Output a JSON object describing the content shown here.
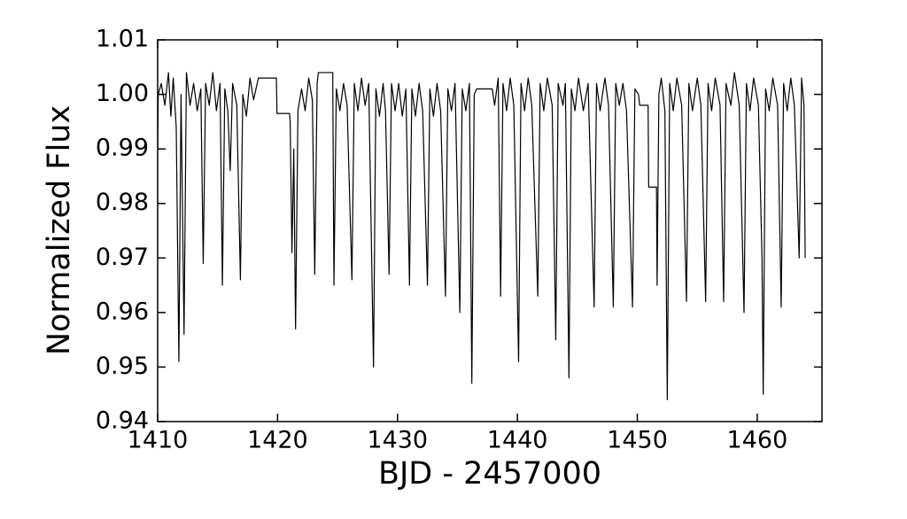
{
  "chart_data": {
    "type": "line",
    "xlabel": "BJD - 2457000",
    "ylabel": "Normalized Flux",
    "color": "#000000",
    "xlim": [
      1410,
      1465.4
    ],
    "ylim": [
      0.94,
      1.01
    ],
    "xticks": [
      1410,
      1420,
      1430,
      1440,
      1450,
      1460
    ],
    "yticks": [
      0.94,
      0.95,
      0.96,
      0.97,
      0.98,
      0.99,
      {
        "value": 1,
        "label": "1.00"
      },
      1.01
    ],
    "x": [
      1410.0,
      1410.05,
      1410.3,
      1410.6,
      1410.9,
      1411.1,
      1411.3,
      1411.55,
      1411.77,
      1411.95,
      1412.2,
      1412.4,
      1412.7,
      1413.0,
      1413.3,
      1413.6,
      1413.8,
      1414.0,
      1414.3,
      1414.6,
      1414.9,
      1415.2,
      1415.4,
      1415.6,
      1415.85,
      1416.05,
      1416.25,
      1416.6,
      1416.9,
      1417.1,
      1417.4,
      1417.7,
      1418.0,
      1418.4,
      1419.9,
      1419.95,
      1421.0,
      1421.05,
      1421.2,
      1421.35,
      1421.5,
      1421.7,
      1422.0,
      1422.3,
      1422.6,
      1422.9,
      1423.1,
      1423.3,
      1423.4,
      1424.6,
      1424.7,
      1424.9,
      1425.2,
      1425.5,
      1425.8,
      1426.2,
      1426.4,
      1426.7,
      1427.0,
      1427.3,
      1427.6,
      1428.0,
      1428.2,
      1428.5,
      1428.8,
      1429.0,
      1429.3,
      1429.5,
      1429.8,
      1430.1,
      1430.4,
      1430.7,
      1431.0,
      1431.2,
      1431.5,
      1431.8,
      1432.1,
      1432.5,
      1432.7,
      1433.0,
      1433.3,
      1433.6,
      1434.0,
      1434.2,
      1434.5,
      1434.8,
      1435.2,
      1435.4,
      1435.7,
      1436.0,
      1436.2,
      1436.4,
      1436.6,
      1437.9,
      1438.1,
      1438.4,
      1438.6,
      1438.8,
      1439.1,
      1439.4,
      1439.7,
      1440.1,
      1440.3,
      1440.6,
      1440.9,
      1441.2,
      1441.7,
      1441.9,
      1442.2,
      1442.5,
      1442.9,
      1443.2,
      1443.4,
      1443.8,
      1444.0,
      1444.3,
      1444.5,
      1444.8,
      1445.1,
      1445.5,
      1445.9,
      1446.4,
      1446.6,
      1446.9,
      1447.3,
      1447.6,
      1448.0,
      1448.2,
      1448.5,
      1448.8,
      1449.1,
      1449.6,
      1449.8,
      1450.1,
      1450.2,
      1450.9,
      1450.95,
      1451.6,
      1451.65,
      1451.8,
      1452.0,
      1452.3,
      1452.5,
      1452.7,
      1453.0,
      1453.3,
      1453.7,
      1454.1,
      1454.3,
      1454.6,
      1455.0,
      1455.3,
      1455.7,
      1455.9,
      1456.2,
      1456.5,
      1456.9,
      1457.2,
      1457.4,
      1457.8,
      1458.1,
      1458.5,
      1458.9,
      1459.1,
      1459.4,
      1459.7,
      1460.1,
      1460.4,
      1460.5,
      1460.7,
      1461.0,
      1461.3,
      1461.7,
      1462.0,
      1462.2,
      1462.5,
      1462.8,
      1463.1,
      1463.5,
      1463.7,
      1463.9,
      1464.0
    ],
    "values": [
      0.99,
      1.0,
      1.002,
      0.998,
      1.004,
      0.996,
      1.003,
      0.994,
      0.951,
      1.0,
      0.956,
      1.004,
      0.998,
      1.002,
      0.997,
      1.001,
      0.969,
      1.002,
      0.998,
      1.004,
      0.997,
      1.002,
      0.965,
      1.001,
      0.997,
      0.986,
      1.002,
      0.998,
      0.966,
      1.0,
      0.996,
      1.003,
      0.999,
      1.003,
      1.003,
      0.9965,
      0.9965,
      0.995,
      0.971,
      0.99,
      0.957,
      0.997,
      1.001,
      0.997,
      1.003,
      0.999,
      0.967,
      1.002,
      1.004,
      1.004,
      0.965,
      1.001,
      0.997,
      1.002,
      0.998,
      0.966,
      1.002,
      0.997,
      1.003,
      0.998,
      1.002,
      0.95,
      1.001,
      0.996,
      1.002,
      0.997,
      0.967,
      1.002,
      0.997,
      1.002,
      0.996,
      1.001,
      0.965,
      1.001,
      0.996,
      1.002,
      0.997,
      0.965,
      1.001,
      0.996,
      1.002,
      0.997,
      0.963,
      1.001,
      0.997,
      1.002,
      0.96,
      1.001,
      0.997,
      1.002,
      0.947,
      1.0,
      1.001,
      1.001,
      0.998,
      1.003,
      0.963,
      1.002,
      0.997,
      1.003,
      0.998,
      0.951,
      1.002,
      0.997,
      1.003,
      0.998,
      0.963,
      1.002,
      0.997,
      1.003,
      0.998,
      0.955,
      1.002,
      0.998,
      1.002,
      0.948,
      1.001,
      0.997,
      1.003,
      0.997,
      1.002,
      0.961,
      1.002,
      0.997,
      1.003,
      0.998,
      0.961,
      1.002,
      0.998,
      1.002,
      0.997,
      0.961,
      1.001,
      1.0,
      0.998,
      0.998,
      0.983,
      0.983,
      0.965,
      1.0,
      1.003,
      0.997,
      0.944,
      1.002,
      0.997,
      1.003,
      0.998,
      0.962,
      1.002,
      0.997,
      1.003,
      0.998,
      0.962,
      1.002,
      0.997,
      1.003,
      0.998,
      0.962,
      1.002,
      0.998,
      1.004,
      0.998,
      0.96,
      1.002,
      0.997,
      1.003,
      0.998,
      0.97,
      0.945,
      1.001,
      0.997,
      1.003,
      0.998,
      0.961,
      1.002,
      0.997,
      1.003,
      0.998,
      0.97,
      1.003,
      0.998,
      0.97
    ]
  }
}
